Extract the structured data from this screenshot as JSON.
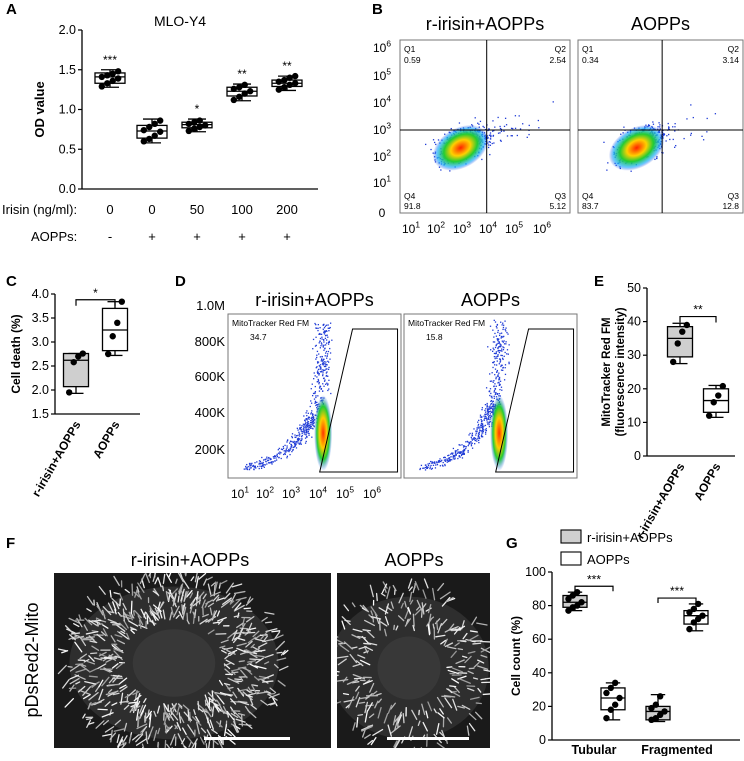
{
  "colors": {
    "ink": "#000000",
    "gray_box": "#cfcfcf",
    "white_box": "#ffffff",
    "flow_cool": "#1f3bd6",
    "flow_hot": "#ff2a00"
  },
  "panels": {
    "A": {
      "letter": "A",
      "title": "MLO-Y4"
    },
    "B": {
      "letter": "B"
    },
    "C": {
      "letter": "C"
    },
    "D": {
      "letter": "D"
    },
    "E": {
      "letter": "E"
    },
    "F": {
      "letter": "F",
      "ylabel": "pDsRed2-Mito",
      "left_title": "r-irisin+AOPPs",
      "right_title": "AOPPs"
    },
    "G": {
      "letter": "G"
    }
  },
  "chart_data": [
    {
      "id": "A",
      "type": "box",
      "title": "MLO-Y4",
      "ylabel": "OD value",
      "ylim": [
        0.0,
        2.0
      ],
      "yticks": [
        "0.0",
        "0.5",
        "1.0",
        "1.5",
        "2.0"
      ],
      "row_labels": [
        "Irisin (ng/ml):",
        "AOPPs:"
      ],
      "groups": [
        {
          "irisin": "0",
          "aopps": "-",
          "sig": "***",
          "min": 1.28,
          "q1": 1.33,
          "median": 1.41,
          "q3": 1.46,
          "max": 1.5,
          "points": [
            1.29,
            1.33,
            1.36,
            1.39,
            1.41,
            1.43,
            1.45,
            1.48
          ]
        },
        {
          "irisin": "0",
          "aopps": "+",
          "sig": "",
          "min": 0.58,
          "q1": 0.64,
          "median": 0.73,
          "q3": 0.8,
          "max": 0.88,
          "points": [
            0.6,
            0.63,
            0.67,
            0.72,
            0.74,
            0.78,
            0.82,
            0.86
          ]
        },
        {
          "irisin": "50",
          "aopps": "+",
          "sig": "*",
          "min": 0.72,
          "q1": 0.77,
          "median": 0.81,
          "q3": 0.84,
          "max": 0.88,
          "points": [
            0.73,
            0.76,
            0.78,
            0.8,
            0.82,
            0.84,
            0.86
          ]
        },
        {
          "irisin": "100",
          "aopps": "+",
          "sig": "**",
          "min": 1.11,
          "q1": 1.17,
          "median": 1.23,
          "q3": 1.28,
          "max": 1.32,
          "points": [
            1.12,
            1.16,
            1.2,
            1.23,
            1.26,
            1.28,
            1.31
          ]
        },
        {
          "irisin": "200",
          "aopps": "+",
          "sig": "**",
          "min": 1.24,
          "q1": 1.29,
          "median": 1.33,
          "q3": 1.37,
          "max": 1.42,
          "points": [
            1.25,
            1.28,
            1.31,
            1.33,
            1.35,
            1.37,
            1.4,
            1.42
          ]
        }
      ]
    },
    {
      "id": "B",
      "type": "scatter-density",
      "yticks": [
        "0",
        "10",
        "10",
        "10",
        "10",
        "10",
        "10"
      ],
      "ytick_exp": [
        "",
        "1",
        "2",
        "3",
        "4",
        "5",
        "6"
      ],
      "xticks": [
        "10",
        "10",
        "10",
        "10",
        "10",
        "10"
      ],
      "xtick_exp": [
        "1",
        "2",
        "3",
        "4",
        "5",
        "6"
      ],
      "plots": [
        {
          "title": "r-irisin+AOPPs",
          "quadrants": {
            "Q1": {
              "label": "Q1",
              "value": "0.59"
            },
            "Q2": {
              "label": "Q2",
              "value": "2.54"
            },
            "Q3": {
              "label": "Q3",
              "value": "5.12"
            },
            "Q4": {
              "label": "Q4",
              "value": "91.8"
            }
          }
        },
        {
          "title": "AOPPs",
          "quadrants": {
            "Q1": {
              "label": "Q1",
              "value": "0.34"
            },
            "Q2": {
              "label": "Q2",
              "value": "3.14"
            },
            "Q3": {
              "label": "Q3",
              "value": "12.8"
            },
            "Q4": {
              "label": "Q4",
              "value": "83.7"
            }
          }
        }
      ]
    },
    {
      "id": "C",
      "type": "box",
      "ylabel": "Cell death (%)",
      "ylim": [
        1.5,
        4.0
      ],
      "yticks": [
        "1.5",
        "2.0",
        "2.5",
        "3.0",
        "3.5",
        "4.0"
      ],
      "sig": "*",
      "groups": [
        {
          "label": "r-irisin+AOPPs",
          "fill": "gray",
          "min": 1.93,
          "q1": 2.07,
          "median": 2.62,
          "q3": 2.76,
          "max": 2.76,
          "points": [
            1.95,
            2.58,
            2.7,
            2.76
          ]
        },
        {
          "label": "AOPPs",
          "fill": "white",
          "min": 2.72,
          "q1": 2.82,
          "median": 3.25,
          "q3": 3.7,
          "max": 3.84,
          "points": [
            2.75,
            3.12,
            3.4,
            3.84
          ]
        }
      ]
    },
    {
      "id": "D",
      "type": "scatter-density",
      "yticks": [
        "200K",
        "400K",
        "600K",
        "800K",
        "1.0M"
      ],
      "xticks": [
        "10",
        "10",
        "10",
        "10",
        "10",
        "10"
      ],
      "xtick_exp": [
        "1",
        "2",
        "3",
        "4",
        "5",
        "6"
      ],
      "plots": [
        {
          "title": "r-irisin+AOPPs",
          "gate_label": "MitoTracker Red FM",
          "gate_value": "34.7"
        },
        {
          "title": "AOPPs",
          "gate_label": "MitoTracker Red FM",
          "gate_value": "15.8"
        }
      ]
    },
    {
      "id": "E",
      "type": "box",
      "ylabel": "MitoTracker Red FM (fluorescence intensity)",
      "ylabel_lines": [
        "MitoTracker Red FM",
        "(fluorescence intensity)"
      ],
      "ylim": [
        0,
        50
      ],
      "yticks": [
        "0",
        "10",
        "20",
        "30",
        "40",
        "50"
      ],
      "sig": "**",
      "groups": [
        {
          "label": "r-irisin+AOPPs",
          "fill": "gray",
          "min": 27.5,
          "q1": 29.5,
          "median": 35.0,
          "q3": 38.5,
          "max": 39.5,
          "points": [
            28.0,
            33.5,
            37.0,
            39.0
          ]
        },
        {
          "label": "AOPPs",
          "fill": "white",
          "min": 11.5,
          "q1": 13.0,
          "median": 16.5,
          "q3": 20.0,
          "max": 21.0,
          "points": [
            12.0,
            16.0,
            18.0,
            20.8
          ]
        }
      ]
    },
    {
      "id": "G",
      "type": "box",
      "ylabel": "Cell count (%)",
      "ylim": [
        0,
        100
      ],
      "yticks": [
        "0",
        "20",
        "40",
        "60",
        "80",
        "100"
      ],
      "legend": [
        {
          "label": "r-irisin+AOPPs",
          "fill": "gray"
        },
        {
          "label": "AOPPs",
          "fill": "white"
        }
      ],
      "categories": [
        {
          "label": "Tubular",
          "sig": "***",
          "boxes": [
            {
              "fill": "gray",
              "min": 77,
              "q1": 79,
              "median": 82,
              "q3": 86,
              "max": 88,
              "points": [
                77,
                79,
                80,
                82,
                84,
                86,
                88
              ]
            },
            {
              "fill": "white",
              "min": 12,
              "q1": 18,
              "median": 25,
              "q3": 31,
              "max": 34,
              "points": [
                13,
                18,
                21,
                25,
                28,
                31,
                34
              ]
            }
          ]
        },
        {
          "label": "Fragmented",
          "sig": "***",
          "boxes": [
            {
              "fill": "gray",
              "min": 11,
              "q1": 12,
              "median": 17,
              "q3": 20,
              "max": 27,
              "points": [
                12,
                13,
                15,
                17,
                19,
                21,
                26
              ]
            },
            {
              "fill": "white",
              "min": 65,
              "q1": 69,
              "median": 74,
              "q3": 77,
              "max": 81,
              "points": [
                66,
                70,
                72,
                74,
                76,
                78,
                81
              ]
            }
          ]
        }
      ]
    }
  ]
}
